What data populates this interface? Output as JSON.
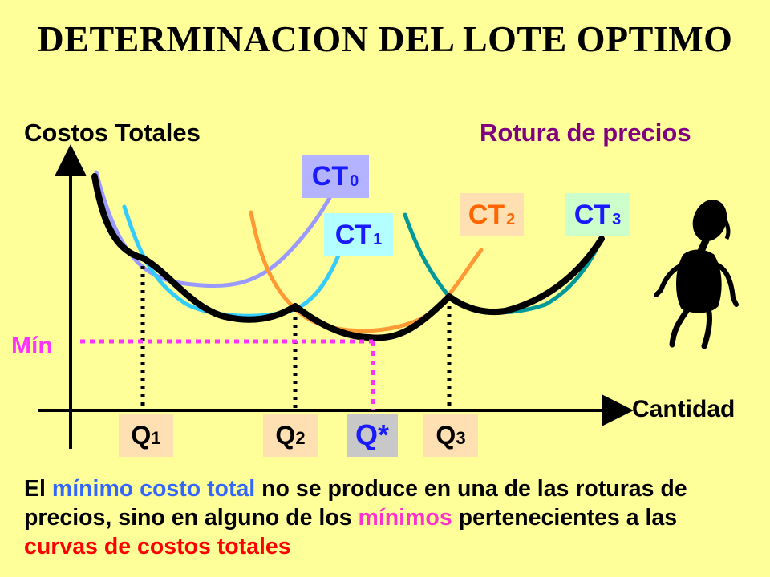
{
  "title": "DETERMINACION DEL LOTE OPTIMO",
  "axes": {
    "y_label": "Costos Totales",
    "x_label": "Cantidad"
  },
  "note_label": "Rotura de precios",
  "min_label": "Mín",
  "curves": [
    {
      "name": "CT",
      "sub": "0",
      "color": "#9999ff"
    },
    {
      "name": "CT",
      "sub": "1",
      "color": "#33ccff"
    },
    {
      "name": "CT",
      "sub": "2",
      "color": "#ff9933"
    },
    {
      "name": "CT",
      "sub": "3",
      "color": "#009999"
    }
  ],
  "quantities": {
    "q1": {
      "base": "Q",
      "sub": "1"
    },
    "q2": {
      "base": "Q",
      "sub": "2"
    },
    "qstar": "Q*",
    "q3": {
      "base": "Q",
      "sub": "3"
    }
  },
  "paragraph": {
    "p1": "El ",
    "p2": "mínimo",
    "p3": " ",
    "p4": "costo total",
    "p5": " no se produce en una de las roturas de precios, sino en alguno de los ",
    "p6": "mínimos",
    "p7": " pertenecientes a las ",
    "p8": "curvas de costos totales"
  },
  "icons": {
    "figure": "thinking-person-icon"
  },
  "colors": {
    "background": "#ffff99",
    "min_line": "#ff33ff",
    "envelope": "#000000"
  }
}
